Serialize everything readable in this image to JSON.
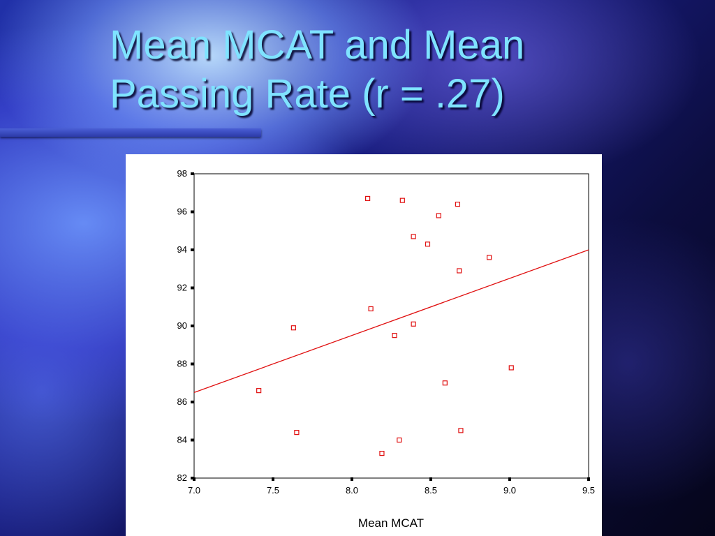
{
  "slide": {
    "title_line1": "Mean MCAT and Mean",
    "title_line2": "Passing Rate (r = .27)"
  },
  "colors": {
    "title": "#7fe3ff",
    "marker": "#e01010",
    "fit_line": "#e01010"
  },
  "chart_data": {
    "type": "scatter",
    "xlabel": "Mean MCAT",
    "ylabel": "",
    "xlim": [
      7.0,
      9.5
    ],
    "ylim": [
      82,
      98
    ],
    "x_ticks": [
      "7.0",
      "7.5",
      "8.0",
      "8.5",
      "9.0",
      "9.5"
    ],
    "y_ticks": [
      "82",
      "84",
      "86",
      "88",
      "90",
      "92",
      "94",
      "96",
      "98"
    ],
    "grid": false,
    "marker": "hollow-square",
    "points": [
      {
        "x": 7.41,
        "y": 86.6
      },
      {
        "x": 7.63,
        "y": 89.9
      },
      {
        "x": 7.65,
        "y": 84.4
      },
      {
        "x": 8.1,
        "y": 96.7
      },
      {
        "x": 8.12,
        "y": 90.9
      },
      {
        "x": 8.19,
        "y": 83.3
      },
      {
        "x": 8.27,
        "y": 89.5
      },
      {
        "x": 8.3,
        "y": 84.0
      },
      {
        "x": 8.32,
        "y": 96.6
      },
      {
        "x": 8.39,
        "y": 94.7
      },
      {
        "x": 8.39,
        "y": 90.1
      },
      {
        "x": 8.48,
        "y": 94.3
      },
      {
        "x": 8.55,
        "y": 95.8
      },
      {
        "x": 8.59,
        "y": 87.0
      },
      {
        "x": 8.67,
        "y": 96.4
      },
      {
        "x": 8.68,
        "y": 92.9
      },
      {
        "x": 8.69,
        "y": 84.5
      },
      {
        "x": 8.87,
        "y": 93.6
      },
      {
        "x": 9.01,
        "y": 87.8
      }
    ],
    "fit_line": {
      "x": [
        7.0,
        9.5
      ],
      "y": [
        86.5,
        94.0
      ]
    }
  }
}
